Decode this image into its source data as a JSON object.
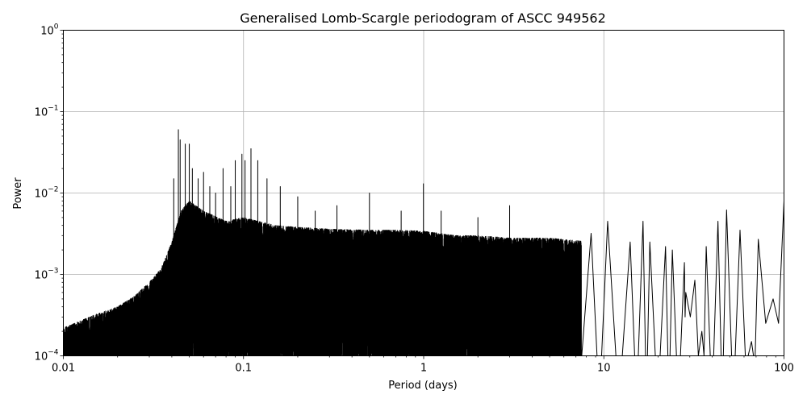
{
  "chart_data": {
    "type": "line",
    "title": "Generalised Lomb-Scargle periodogram of ASCC 949562",
    "xlabel": "Period (days)",
    "ylabel": "Power",
    "xscale": "log",
    "yscale": "log",
    "xlim": [
      0.01,
      100
    ],
    "ylim": [
      0.0001,
      1
    ],
    "grid": true,
    "line_color": "#000000",
    "x_ticks": [
      {
        "value": 0.01,
        "label": "0.01"
      },
      {
        "value": 0.1,
        "label": "0.1"
      },
      {
        "value": 1,
        "label": "1"
      },
      {
        "value": 10,
        "label": "10"
      },
      {
        "value": 100,
        "label": "100"
      }
    ],
    "y_ticks": [
      {
        "value": 0.0001,
        "base": "10",
        "exp": "−4"
      },
      {
        "value": 0.001,
        "base": "10",
        "exp": "−3"
      },
      {
        "value": 0.01,
        "base": "10",
        "exp": "−2"
      },
      {
        "value": 0.1,
        "base": "10",
        "exp": "−1"
      },
      {
        "value": 1,
        "base": "10",
        "exp": "0"
      }
    ],
    "series": [
      {
        "envelope": {
          "x": [
            0.01,
            0.015,
            0.02,
            0.025,
            0.03,
            0.035,
            0.04,
            0.045,
            0.05,
            0.06,
            0.08,
            0.1,
            0.15,
            0.2,
            0.3,
            0.5,
            0.7,
            1,
            1.5,
            2,
            3,
            5,
            7,
            10
          ],
          "y": [
            0.00022,
            0.00032,
            0.0004,
            0.00055,
            0.0008,
            0.0012,
            0.0025,
            0.006,
            0.008,
            0.006,
            0.0045,
            0.005,
            0.004,
            0.0038,
            0.0036,
            0.0035,
            0.0035,
            0.0034,
            0.003,
            0.003,
            0.0028,
            0.0028,
            0.0026,
            0.0025
          ]
        },
        "peaks": [
          {
            "x": 0.0435,
            "y": 0.06
          },
          {
            "x": 0.0445,
            "y": 0.045
          },
          {
            "x": 0.0475,
            "y": 0.04
          },
          {
            "x": 0.05,
            "y": 0.04
          },
          {
            "x": 0.041,
            "y": 0.015
          },
          {
            "x": 0.052,
            "y": 0.02
          },
          {
            "x": 0.056,
            "y": 0.015
          },
          {
            "x": 0.06,
            "y": 0.018
          },
          {
            "x": 0.065,
            "y": 0.012
          },
          {
            "x": 0.07,
            "y": 0.01
          },
          {
            "x": 0.077,
            "y": 0.02
          },
          {
            "x": 0.085,
            "y": 0.012
          },
          {
            "x": 0.09,
            "y": 0.025
          },
          {
            "x": 0.098,
            "y": 0.03
          },
          {
            "x": 0.102,
            "y": 0.025
          },
          {
            "x": 0.11,
            "y": 0.035
          },
          {
            "x": 0.12,
            "y": 0.025
          },
          {
            "x": 0.135,
            "y": 0.015
          },
          {
            "x": 0.16,
            "y": 0.012
          },
          {
            "x": 0.2,
            "y": 0.009
          },
          {
            "x": 0.25,
            "y": 0.006
          },
          {
            "x": 0.33,
            "y": 0.007
          },
          {
            "x": 0.5,
            "y": 0.01
          },
          {
            "x": 0.75,
            "y": 0.006
          },
          {
            "x": 0.997,
            "y": 0.013
          },
          {
            "x": 1.25,
            "y": 0.006
          },
          {
            "x": 2,
            "y": 0.005
          },
          {
            "x": 3,
            "y": 0.007
          }
        ],
        "lobes": [
          {
            "x": 8.5,
            "y": 0.0032
          },
          {
            "x": 10.5,
            "y": 0.0045
          },
          {
            "x": 14,
            "y": 0.0025
          },
          {
            "x": 16.5,
            "y": 0.0045
          },
          {
            "x": 18,
            "y": 0.0025
          },
          {
            "x": 22,
            "y": 0.0022
          },
          {
            "x": 24,
            "y": 0.002
          },
          {
            "x": 28,
            "y": 0.0014
          },
          {
            "x": 32,
            "y": 0.00085
          },
          {
            "x": 37,
            "y": 0.0022
          },
          {
            "x": 43,
            "y": 0.0045
          },
          {
            "x": 48,
            "y": 0.0062
          },
          {
            "x": 57,
            "y": 0.0035
          },
          {
            "x": 72,
            "y": 0.0027
          },
          {
            "x": 100,
            "y": 0.008
          }
        ],
        "troughs": [
          {
            "x": 28.5,
            "y": 0.0006
          },
          {
            "x": 35,
            "y": 0.0002
          },
          {
            "x": 66,
            "y": 0.00015
          },
          {
            "x": 87,
            "y": 0.0005
          }
        ]
      }
    ]
  }
}
